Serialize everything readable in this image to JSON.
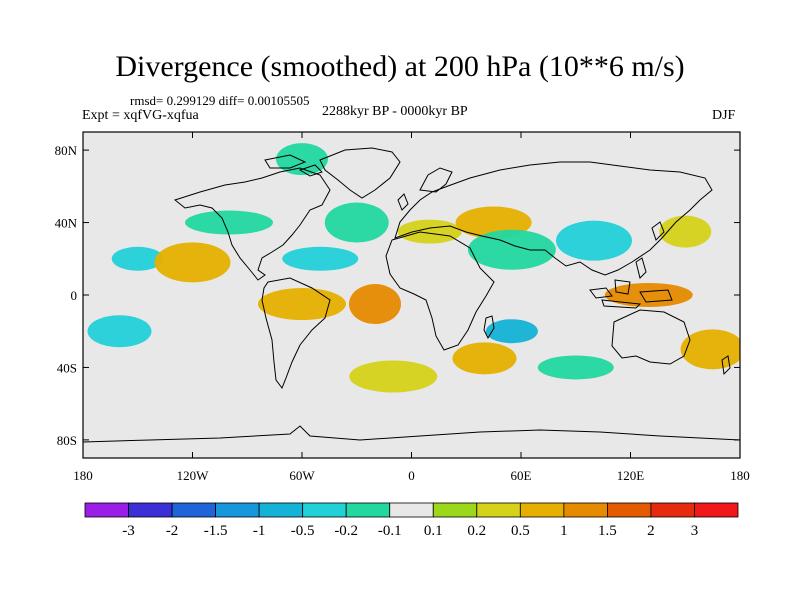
{
  "header": {
    "title": "Divergence (smoothed) at 200 hPa (10**6 m/s)",
    "stats": "rmsd= 0.299129 diff= 0.00105505",
    "experiment": "Expt = xqfVG-xqfua",
    "period": "2288kyr BP - 0000kyr BP",
    "season": "DJF"
  },
  "chart_data": {
    "type": "heatmap",
    "title": "Divergence (smoothed) at 200 hPa (10**6 m/s)",
    "xlabel": "",
    "ylabel": "",
    "xlim": [
      -180,
      180
    ],
    "ylim": [
      -90,
      90
    ],
    "x_ticks": [
      -180,
      -120,
      -60,
      0,
      60,
      120,
      180
    ],
    "x_tick_labels": [
      "180",
      "120W",
      "60W",
      "0",
      "60E",
      "120E",
      "180"
    ],
    "y_ticks": [
      80,
      40,
      0,
      -40,
      -80
    ],
    "y_tick_labels": [
      "80N",
      "40N",
      "0",
      "40S",
      "80S"
    ],
    "colorbar": {
      "levels": [
        -3,
        -2,
        -1.5,
        -1,
        -0.5,
        -0.2,
        -0.1,
        0.1,
        0.2,
        0.5,
        1,
        1.5,
        2,
        3
      ],
      "labels": [
        "-3",
        "-2",
        "-1.5",
        "-1",
        "-0.5",
        "-0.2",
        "-0.1",
        "0.1",
        "0.2",
        "0.5",
        "1",
        "1.5",
        "2",
        "3"
      ],
      "colors": [
        "#9a1ee6",
        "#3c2fd8",
        "#1f64d8",
        "#1696dc",
        "#13b2d6",
        "#22d0d8",
        "#22d8a0",
        "#e8e8e8",
        "#9bd71a",
        "#d6d21a",
        "#e6b000",
        "#e68a00",
        "#e45a00",
        "#e62a10",
        "#f01818"
      ]
    },
    "features": [
      {
        "lon": -150,
        "lat": 20,
        "value": -0.5
      },
      {
        "lon": -160,
        "lat": -20,
        "value": -0.5
      },
      {
        "lon": -120,
        "lat": 18,
        "value": 0.5
      },
      {
        "lon": -100,
        "lat": 40,
        "value": -0.2
      },
      {
        "lon": -60,
        "lat": 75,
        "value": -0.2
      },
      {
        "lon": -30,
        "lat": 40,
        "value": -0.2
      },
      {
        "lon": -50,
        "lat": 20,
        "value": -0.5
      },
      {
        "lon": -60,
        "lat": -5,
        "value": 0.5
      },
      {
        "lon": -20,
        "lat": -5,
        "value": 1
      },
      {
        "lon": 10,
        "lat": 35,
        "value": 0.2
      },
      {
        "lon": 45,
        "lat": 40,
        "value": 0.5
      },
      {
        "lon": 55,
        "lat": 25,
        "value": -0.2
      },
      {
        "lon": 55,
        "lat": -20,
        "value": -1
      },
      {
        "lon": 40,
        "lat": -35,
        "value": 0.5
      },
      {
        "lon": 100,
        "lat": 30,
        "value": -0.5
      },
      {
        "lon": 130,
        "lat": 0,
        "value": 1
      },
      {
        "lon": 150,
        "lat": 35,
        "value": 0.2
      },
      {
        "lon": 165,
        "lat": -30,
        "value": 0.5
      },
      {
        "lon": 90,
        "lat": -40,
        "value": -0.2
      },
      {
        "lon": -10,
        "lat": -45,
        "value": 0.2
      }
    ]
  }
}
